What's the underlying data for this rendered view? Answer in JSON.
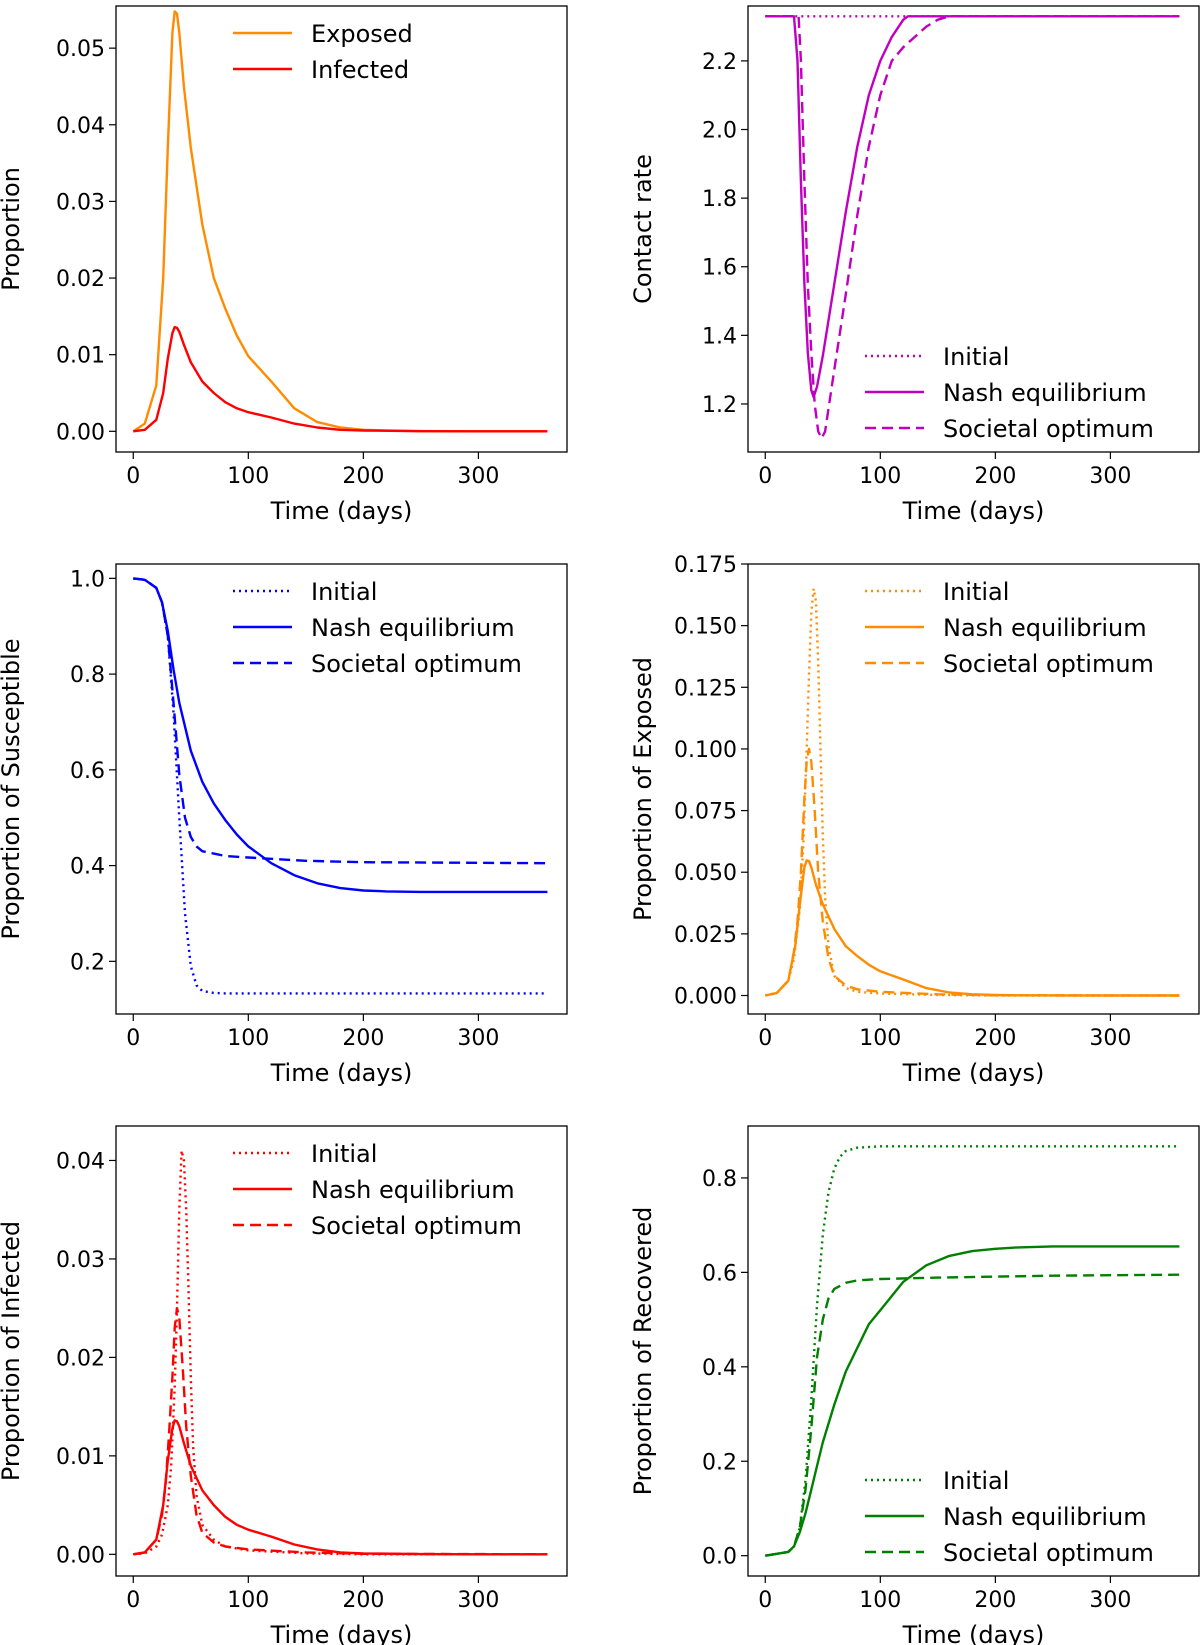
{
  "chart_data": [
    {
      "type": "line",
      "xlabel": "Time (days)",
      "ylabel": "Proportion",
      "xlim": [
        -15,
        377
      ],
      "ylim": [
        -0.0027,
        0.0555
      ],
      "xticks": [
        0,
        100,
        200,
        300
      ],
      "xtick_labels": [
        "0",
        "100",
        "200",
        "300"
      ],
      "yticks": [
        0.0,
        0.01,
        0.02,
        0.03,
        0.04,
        0.05
      ],
      "ytick_labels": [
        "0.00",
        "0.01",
        "0.02",
        "0.03",
        "0.04",
        "0.05"
      ],
      "legend_position": "top-right",
      "series": [
        {
          "name": "Exposed",
          "color": "#ff8c00",
          "style": "solid",
          "x": [
            0,
            10,
            20,
            26,
            30,
            34,
            36,
            38,
            40,
            44,
            50,
            60,
            70,
            80,
            90,
            100,
            120,
            140,
            160,
            180,
            200,
            220,
            250,
            300,
            360
          ],
          "y": [
            0,
            0.001,
            0.006,
            0.02,
            0.037,
            0.052,
            0.0548,
            0.0545,
            0.052,
            0.045,
            0.037,
            0.027,
            0.02,
            0.016,
            0.0125,
            0.0098,
            0.0065,
            0.003,
            0.0012,
            0.0005,
            0.0002,
            0.0001,
            3e-05,
            0,
            0
          ]
        },
        {
          "name": "Infected",
          "color": "#ff0000",
          "style": "solid",
          "x": [
            0,
            10,
            20,
            26,
            30,
            34,
            36,
            38,
            40,
            44,
            50,
            60,
            70,
            80,
            90,
            100,
            120,
            140,
            160,
            180,
            200,
            250,
            300,
            360
          ],
          "y": [
            0,
            0.0002,
            0.0015,
            0.005,
            0.0095,
            0.0128,
            0.0136,
            0.0135,
            0.013,
            0.0113,
            0.009,
            0.0065,
            0.005,
            0.0038,
            0.003,
            0.0025,
            0.0018,
            0.001,
            0.0005,
            0.0002,
            0.0001,
            2e-05,
            0,
            0
          ]
        }
      ]
    },
    {
      "type": "line",
      "xlabel": "Time (days)",
      "ylabel": "Contact rate",
      "xlim": [
        -15,
        377
      ],
      "ylim": [
        1.06,
        2.36
      ],
      "xticks": [
        0,
        100,
        200,
        300
      ],
      "xtick_labels": [
        "0",
        "100",
        "200",
        "300"
      ],
      "yticks": [
        1.2,
        1.4,
        1.6,
        1.8,
        2.0,
        2.2
      ],
      "ytick_labels": [
        "1.2",
        "1.4",
        "1.6",
        "1.8",
        "2.0",
        "2.2"
      ],
      "legend_position": "bottom-right",
      "series": [
        {
          "name": "Initial",
          "color": "#c000c0",
          "style": "dotted",
          "x": [
            0,
            360
          ],
          "y": [
            2.33,
            2.33
          ]
        },
        {
          "name": "Nash equilibrium",
          "color": "#c000c0",
          "style": "solid",
          "x": [
            0,
            25,
            28,
            31,
            34,
            37,
            40,
            42,
            45,
            50,
            60,
            70,
            80,
            90,
            100,
            110,
            120,
            124,
            130,
            360
          ],
          "y": [
            2.33,
            2.33,
            2.2,
            1.85,
            1.55,
            1.35,
            1.24,
            1.22,
            1.25,
            1.34,
            1.55,
            1.76,
            1.95,
            2.1,
            2.2,
            2.27,
            2.32,
            2.33,
            2.33,
            2.33
          ]
        },
        {
          "name": "Societal optimum",
          "color": "#c000c0",
          "style": "dashed",
          "x": [
            0,
            29,
            31,
            34,
            37,
            40,
            43,
            46,
            49,
            52,
            60,
            70,
            80,
            90,
            100,
            110,
            120,
            130,
            140,
            150,
            160,
            360
          ],
          "y": [
            2.33,
            2.33,
            2.2,
            1.85,
            1.55,
            1.35,
            1.2,
            1.12,
            1.1,
            1.12,
            1.3,
            1.52,
            1.75,
            1.95,
            2.1,
            2.2,
            2.24,
            2.27,
            2.3,
            2.32,
            2.33,
            2.33
          ]
        }
      ]
    },
    {
      "type": "line",
      "xlabel": "Time (days)",
      "ylabel": "Proportion of Susceptible",
      "xlim": [
        -15,
        377
      ],
      "ylim": [
        0.09,
        1.03
      ],
      "xticks": [
        0,
        100,
        200,
        300
      ],
      "xtick_labels": [
        "0",
        "100",
        "200",
        "300"
      ],
      "yticks": [
        0.2,
        0.4,
        0.6,
        0.8,
        1.0
      ],
      "ytick_labels": [
        "0.2",
        "0.4",
        "0.6",
        "0.8",
        "1.0"
      ],
      "legend_position": "top-right",
      "series": [
        {
          "name": "Initial",
          "color": "#0000ff",
          "style": "dotted",
          "x": [
            0,
            10,
            20,
            25,
            30,
            35,
            40,
            45,
            50,
            55,
            60,
            70,
            80,
            100,
            200,
            360
          ],
          "y": [
            1.0,
            0.997,
            0.98,
            0.95,
            0.88,
            0.72,
            0.5,
            0.3,
            0.19,
            0.15,
            0.138,
            0.134,
            0.133,
            0.133,
            0.133,
            0.133
          ]
        },
        {
          "name": "Nash equilibrium",
          "color": "#0000ff",
          "style": "solid",
          "x": [
            0,
            10,
            20,
            25,
            30,
            35,
            40,
            50,
            60,
            70,
            80,
            90,
            100,
            120,
            140,
            160,
            180,
            200,
            220,
            250,
            300,
            360
          ],
          "y": [
            1.0,
            0.997,
            0.98,
            0.95,
            0.89,
            0.81,
            0.74,
            0.64,
            0.575,
            0.53,
            0.495,
            0.465,
            0.44,
            0.405,
            0.38,
            0.363,
            0.353,
            0.348,
            0.346,
            0.345,
            0.345,
            0.345
          ]
        },
        {
          "name": "Societal optimum",
          "color": "#0000ff",
          "style": "dashed",
          "x": [
            0,
            10,
            20,
            25,
            30,
            35,
            40,
            45,
            50,
            55,
            60,
            70,
            80,
            100,
            150,
            200,
            360
          ],
          "y": [
            1.0,
            0.997,
            0.98,
            0.95,
            0.88,
            0.74,
            0.59,
            0.5,
            0.46,
            0.44,
            0.43,
            0.425,
            0.42,
            0.417,
            0.41,
            0.407,
            0.405
          ]
        }
      ]
    },
    {
      "type": "line",
      "xlabel": "Time (days)",
      "ylabel": "Proportion of Exposed",
      "xlim": [
        -15,
        377
      ],
      "ylim": [
        -0.0075,
        0.175
      ],
      "xticks": [
        0,
        100,
        200,
        300
      ],
      "xtick_labels": [
        "0",
        "100",
        "200",
        "300"
      ],
      "yticks": [
        0.0,
        0.025,
        0.05,
        0.075,
        0.1,
        0.125,
        0.15,
        0.175
      ],
      "ytick_labels": [
        "0.000",
        "0.025",
        "0.050",
        "0.075",
        "0.100",
        "0.125",
        "0.150",
        "0.175"
      ],
      "legend_position": "top-right",
      "series": [
        {
          "name": "Initial",
          "color": "#ff8c00",
          "style": "dotted",
          "x": [
            0,
            10,
            20,
            25,
            30,
            33,
            36,
            38,
            40,
            42,
            44,
            46,
            48,
            50,
            52,
            55,
            60,
            70,
            80,
            100,
            150,
            200,
            360
          ],
          "y": [
            0,
            0.001,
            0.006,
            0.015,
            0.035,
            0.06,
            0.1,
            0.13,
            0.155,
            0.165,
            0.16,
            0.135,
            0.1,
            0.065,
            0.04,
            0.02,
            0.008,
            0.003,
            0.0015,
            0.0008,
            0.0002,
            0,
            0
          ]
        },
        {
          "name": "Nash equilibrium",
          "color": "#ff8c00",
          "style": "solid",
          "x": [
            0,
            10,
            20,
            26,
            30,
            34,
            36,
            38,
            40,
            44,
            50,
            60,
            70,
            80,
            90,
            100,
            120,
            140,
            160,
            180,
            200,
            220,
            250,
            300,
            360
          ],
          "y": [
            0,
            0.001,
            0.006,
            0.02,
            0.037,
            0.052,
            0.0548,
            0.0545,
            0.052,
            0.045,
            0.037,
            0.027,
            0.02,
            0.016,
            0.0125,
            0.0098,
            0.0065,
            0.003,
            0.0012,
            0.0005,
            0.0002,
            0.0001,
            3e-05,
            0,
            0
          ]
        },
        {
          "name": "Societal optimum",
          "color": "#ff8c00",
          "style": "dashed",
          "x": [
            0,
            10,
            20,
            25,
            28,
            31,
            34,
            36,
            38,
            40,
            43,
            46,
            50,
            55,
            60,
            70,
            80,
            100,
            150,
            200,
            360
          ],
          "y": [
            0,
            0.001,
            0.006,
            0.018,
            0.03,
            0.05,
            0.08,
            0.095,
            0.1,
            0.095,
            0.075,
            0.05,
            0.03,
            0.015,
            0.008,
            0.004,
            0.0025,
            0.0015,
            0.0005,
            0.0001,
            0
          ]
        }
      ]
    },
    {
      "type": "line",
      "xlabel": "Time (days)",
      "ylabel": "Proportion of Infected",
      "xlim": [
        -15,
        377
      ],
      "ylim": [
        -0.0022,
        0.0435
      ],
      "xticks": [
        0,
        100,
        200,
        300
      ],
      "xtick_labels": [
        "0",
        "100",
        "200",
        "300"
      ],
      "yticks": [
        0.0,
        0.01,
        0.02,
        0.03,
        0.04
      ],
      "ytick_labels": [
        "0.00",
        "0.01",
        "0.02",
        "0.03",
        "0.04"
      ],
      "legend_position": "top-right",
      "series": [
        {
          "name": "Initial",
          "color": "#ff0000",
          "style": "dotted",
          "x": [
            0,
            10,
            20,
            25,
            30,
            33,
            36,
            38,
            40,
            42,
            44,
            46,
            48,
            50,
            52,
            55,
            60,
            70,
            80,
            100,
            150,
            200,
            360
          ],
          "y": [
            0,
            0.0001,
            0.0008,
            0.002,
            0.005,
            0.009,
            0.017,
            0.025,
            0.035,
            0.041,
            0.04,
            0.035,
            0.027,
            0.018,
            0.011,
            0.006,
            0.003,
            0.0015,
            0.0008,
            0.0004,
            0.0001,
            0,
            0
          ]
        },
        {
          "name": "Nash equilibrium",
          "color": "#ff0000",
          "style": "solid",
          "x": [
            0,
            10,
            20,
            26,
            30,
            34,
            36,
            38,
            40,
            44,
            50,
            60,
            70,
            80,
            90,
            100,
            120,
            140,
            160,
            180,
            200,
            250,
            300,
            360
          ],
          "y": [
            0,
            0.0002,
            0.0015,
            0.005,
            0.0095,
            0.0128,
            0.0136,
            0.0135,
            0.013,
            0.0113,
            0.009,
            0.0065,
            0.005,
            0.0038,
            0.003,
            0.0025,
            0.0018,
            0.001,
            0.0005,
            0.0002,
            0.0001,
            2e-05,
            0,
            0
          ]
        },
        {
          "name": "Societal optimum",
          "color": "#ff0000",
          "style": "dashed",
          "x": [
            0,
            10,
            20,
            25,
            28,
            31,
            34,
            36,
            38,
            40,
            43,
            46,
            50,
            55,
            60,
            70,
            80,
            100,
            150,
            200,
            360
          ],
          "y": [
            0,
            0.0002,
            0.0015,
            0.004,
            0.007,
            0.012,
            0.018,
            0.023,
            0.025,
            0.024,
            0.019,
            0.013,
            0.008,
            0.004,
            0.0022,
            0.0012,
            0.0008,
            0.0005,
            0.0002,
            5e-05,
            0
          ]
        }
      ]
    },
    {
      "type": "line",
      "xlabel": "Time (days)",
      "ylabel": "Proportion of Recovered",
      "xlim": [
        -15,
        377
      ],
      "ylim": [
        -0.043,
        0.91
      ],
      "xticks": [
        0,
        100,
        200,
        300
      ],
      "xtick_labels": [
        "0",
        "100",
        "200",
        "300"
      ],
      "yticks": [
        0.0,
        0.2,
        0.4,
        0.6,
        0.8
      ],
      "ytick_labels": [
        "0.0",
        "0.2",
        "0.4",
        "0.6",
        "0.8"
      ],
      "legend_position": "bottom-right",
      "series": [
        {
          "name": "Initial",
          "color": "#008000",
          "style": "dotted",
          "x": [
            0,
            20,
            25,
            30,
            35,
            40,
            45,
            50,
            55,
            60,
            65,
            70,
            80,
            100,
            150,
            200,
            360
          ],
          "y": [
            0,
            0.008,
            0.02,
            0.06,
            0.16,
            0.33,
            0.53,
            0.68,
            0.77,
            0.82,
            0.845,
            0.857,
            0.864,
            0.867,
            0.867,
            0.867,
            0.867
          ]
        },
        {
          "name": "Nash equilibrium",
          "color": "#008000",
          "style": "solid",
          "x": [
            0,
            20,
            25,
            30,
            35,
            40,
            45,
            50,
            60,
            70,
            80,
            90,
            100,
            110,
            120,
            140,
            160,
            180,
            200,
            220,
            250,
            300,
            360
          ],
          "y": [
            0,
            0.008,
            0.02,
            0.05,
            0.09,
            0.14,
            0.19,
            0.24,
            0.32,
            0.39,
            0.44,
            0.49,
            0.52,
            0.55,
            0.58,
            0.615,
            0.635,
            0.645,
            0.65,
            0.653,
            0.655,
            0.655,
            0.655
          ]
        },
        {
          "name": "Societal optimum",
          "color": "#008000",
          "style": "dashed",
          "x": [
            0,
            20,
            25,
            30,
            35,
            40,
            45,
            50,
            55,
            60,
            70,
            80,
            100,
            150,
            200,
            250,
            300,
            360
          ],
          "y": [
            0,
            0.008,
            0.02,
            0.06,
            0.14,
            0.27,
            0.42,
            0.5,
            0.545,
            0.565,
            0.578,
            0.583,
            0.586,
            0.589,
            0.591,
            0.593,
            0.594,
            0.595
          ]
        }
      ]
    }
  ]
}
